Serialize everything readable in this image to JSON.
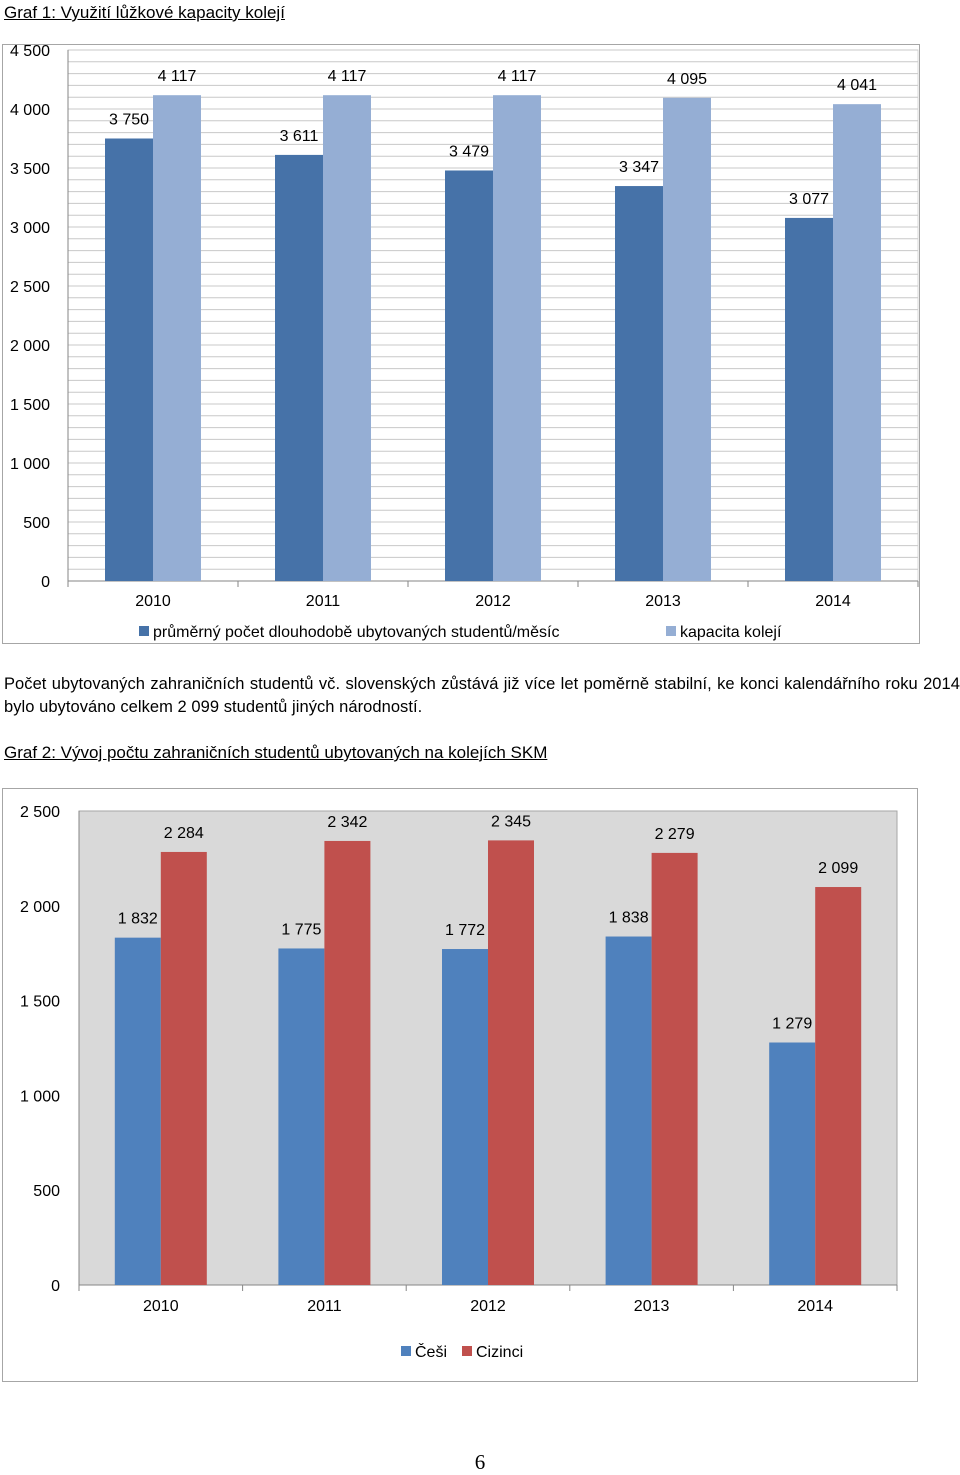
{
  "caption1": "Graf 1: Využití lůžkové kapacity kolejí",
  "caption2": "Graf 2: Vývoj počtu zahraničních studentů ubytovaných na kolejích SKM",
  "paragraph": "Počet ubytovaných zahraničních studentů vč. slovenských zůstává již více let poměrně stabilní, ke konci kalendářního roku 2014 bylo ubytováno celkem 2 099 studentů jiných národností.",
  "page_number": "6",
  "chart_data": [
    {
      "type": "bar",
      "categories": [
        "2010",
        "2011",
        "2012",
        "2013",
        "2014"
      ],
      "series": [
        {
          "name": "průměrný počet dlouhodobě ubytovaných studentů/měsíc",
          "values": [
            3750,
            3611,
            3479,
            3347,
            3077
          ],
          "labels": [
            "3 750",
            "3 611",
            "3 479",
            "3 347",
            "3 077"
          ],
          "color": "#4672a8"
        },
        {
          "name": "kapacita kolejí",
          "values": [
            4117,
            4117,
            4117,
            4095,
            4041
          ],
          "labels": [
            "4 117",
            "4 117",
            "4 117",
            "4 095",
            "4 041"
          ],
          "color": "#95aed4"
        }
      ],
      "ylim": [
        0,
        4500
      ],
      "yticks": [
        0,
        500,
        1000,
        1500,
        2000,
        2500,
        3000,
        3500,
        4000,
        4500
      ],
      "ytick_labels": [
        "0",
        "500",
        "1 000",
        "1 500",
        "2 000",
        "2 500",
        "3 000",
        "3 500",
        "4 000",
        "4 500"
      ],
      "grid": "minor",
      "legend": "bottom",
      "title": "",
      "xlabel": "",
      "ylabel": ""
    },
    {
      "type": "bar",
      "categories": [
        "2010",
        "2011",
        "2012",
        "2013",
        "2014"
      ],
      "series": [
        {
          "name": "Češi",
          "values": [
            1832,
            1775,
            1772,
            1838,
            1279
          ],
          "labels": [
            "1 832",
            "1 775",
            "1 772",
            "1 838",
            "1 279"
          ],
          "color": "#4f81bd"
        },
        {
          "name": "Cizinci",
          "values": [
            2284,
            2342,
            2345,
            2279,
            2099
          ],
          "labels": [
            "2 284",
            "2 342",
            "2 345",
            "2 279",
            "2 099"
          ],
          "color": "#c0504d"
        }
      ],
      "ylim": [
        0,
        2500
      ],
      "yticks": [
        0,
        500,
        1000,
        1500,
        2000,
        2500
      ],
      "ytick_labels": [
        "0",
        "500",
        "1 000",
        "1 500",
        "2 000",
        "2 500"
      ],
      "grid": "none",
      "legend": "bottom",
      "title": "",
      "xlabel": "",
      "ylabel": ""
    }
  ]
}
